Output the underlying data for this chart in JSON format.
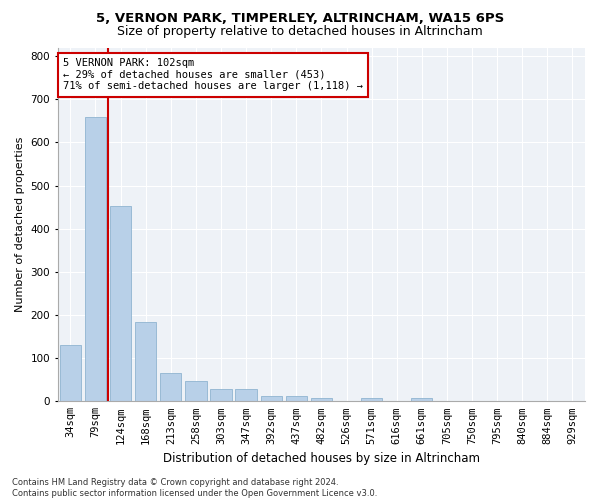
{
  "title1": "5, VERNON PARK, TIMPERLEY, ALTRINCHAM, WA15 6PS",
  "title2": "Size of property relative to detached houses in Altrincham",
  "xlabel": "Distribution of detached houses by size in Altrincham",
  "ylabel": "Number of detached properties",
  "footnote": "Contains HM Land Registry data © Crown copyright and database right 2024.\nContains public sector information licensed under the Open Government Licence v3.0.",
  "bar_labels": [
    "34sqm",
    "79sqm",
    "124sqm",
    "168sqm",
    "213sqm",
    "258sqm",
    "303sqm",
    "347sqm",
    "392sqm",
    "437sqm",
    "482sqm",
    "526sqm",
    "571sqm",
    "616sqm",
    "661sqm",
    "705sqm",
    "750sqm",
    "795sqm",
    "840sqm",
    "884sqm",
    "929sqm"
  ],
  "bar_values": [
    130,
    660,
    453,
    183,
    65,
    48,
    28,
    28,
    13,
    13,
    8,
    0,
    8,
    0,
    8,
    0,
    0,
    0,
    0,
    0,
    0
  ],
  "bar_color": "#b8d0e8",
  "bar_edge_color": "#90b4d0",
  "property_line_x": 1.5,
  "annotation_text": "5 VERNON PARK: 102sqm\n← 29% of detached houses are smaller (453)\n71% of semi-detached houses are larger (1,118) →",
  "annotation_box_color": "#ffffff",
  "annotation_box_edge": "#cc0000",
  "vline_color": "#cc0000",
  "ylim": [
    0,
    820
  ],
  "yticks": [
    0,
    100,
    200,
    300,
    400,
    500,
    600,
    700,
    800
  ],
  "background_color": "#eef2f7",
  "grid_color": "#ffffff",
  "title1_fontsize": 9.5,
  "title2_fontsize": 9,
  "xlabel_fontsize": 8.5,
  "ylabel_fontsize": 8,
  "tick_fontsize": 7.5,
  "annotation_fontsize": 7.5
}
